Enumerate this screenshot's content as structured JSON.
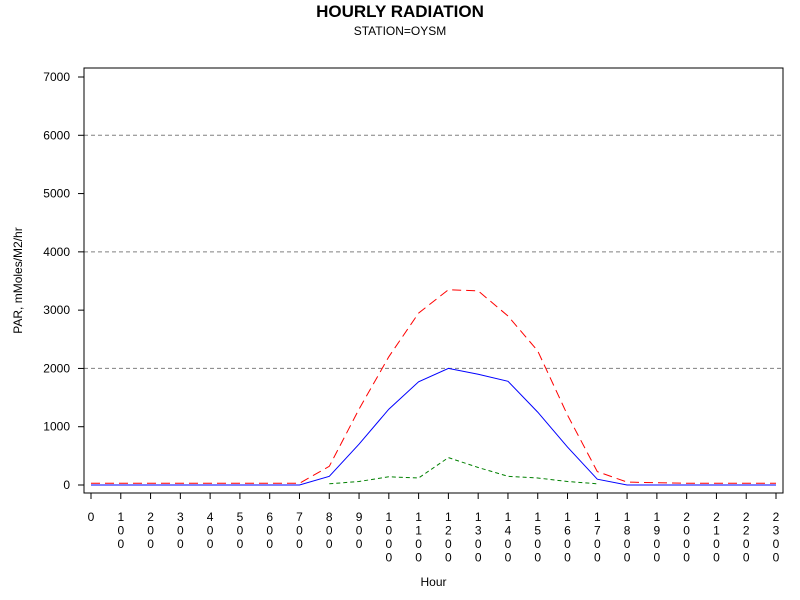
{
  "chart_data": {
    "type": "line",
    "title": "HOURLY RADIATION",
    "subtitle": "STATION=OYSM",
    "xlabel": "Hour",
    "ylabel": "PAR, mMoles/M2/hr",
    "x": [
      0,
      100,
      200,
      300,
      400,
      500,
      600,
      700,
      800,
      900,
      1000,
      1100,
      1200,
      1300,
      1400,
      1500,
      1600,
      1700,
      1800,
      1900,
      2000,
      2100,
      2200,
      2300
    ],
    "x_tick_labels": [
      "0",
      "100",
      "200",
      "300",
      "400",
      "500",
      "600",
      "700",
      "800",
      "900",
      "1000",
      "1100",
      "1200",
      "1300",
      "1400",
      "1500",
      "1600",
      "1700",
      "1800",
      "1900",
      "2000",
      "2100",
      "2200",
      "2300"
    ],
    "y_ticks": [
      0,
      1000,
      2000,
      3000,
      4000,
      5000,
      6000,
      7000
    ],
    "xlim": [
      0,
      2300
    ],
    "ylim": [
      0,
      7000
    ],
    "grid": "horizontal dashed at 2000, 4000, 6000",
    "series": [
      {
        "color": "#ff0000",
        "style": "dashed",
        "values": [
          30,
          30,
          30,
          30,
          30,
          30,
          30,
          30,
          320,
          1300,
          2200,
          2950,
          3350,
          3330,
          2900,
          2300,
          1200,
          230,
          50,
          40,
          30,
          30,
          30,
          30
        ]
      },
      {
        "color": "#0000ff",
        "style": "solid",
        "values": [
          0,
          0,
          0,
          0,
          0,
          0,
          0,
          0,
          150,
          700,
          1300,
          1770,
          2000,
          1900,
          1780,
          1250,
          650,
          100,
          0,
          0,
          0,
          0,
          0,
          0
        ]
      },
      {
        "color": "#008000",
        "style": "dotted-dash",
        "values": [
          null,
          null,
          null,
          null,
          null,
          null,
          null,
          null,
          20,
          60,
          140,
          120,
          470,
          300,
          150,
          120,
          60,
          20,
          null,
          null,
          null,
          null,
          null,
          null
        ]
      }
    ]
  }
}
